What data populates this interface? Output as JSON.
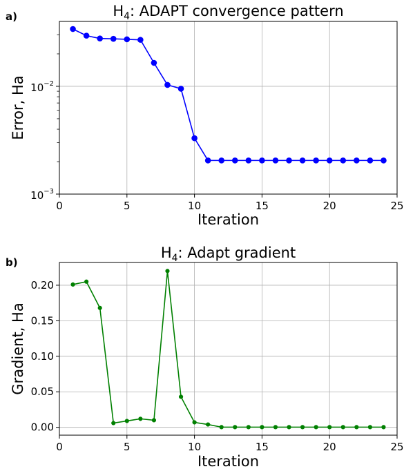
{
  "chart_data": [
    {
      "panel_label": "a)",
      "type": "line",
      "title_main": "H",
      "title_sub": "4",
      "title_rest": ": ADAPT convergence pattern",
      "xlabel": "Iteration",
      "ylabel": "Error, Ha",
      "yscale": "log",
      "xlim": [
        0,
        25
      ],
      "ylim": [
        0.001,
        0.04
      ],
      "xticks": [
        0,
        5,
        10,
        15,
        20,
        25
      ],
      "yticks": [
        {
          "value": 0.001,
          "base": "10",
          "exp": "−3"
        },
        {
          "value": 0.01,
          "base": "10",
          "exp": "−2"
        }
      ],
      "grid": true,
      "color": "#0000ff",
      "x": [
        1,
        2,
        3,
        4,
        5,
        6,
        7,
        8,
        9,
        10,
        11,
        12,
        13,
        14,
        15,
        16,
        17,
        18,
        19,
        20,
        21,
        22,
        23,
        24
      ],
      "y": [
        0.034,
        0.0295,
        0.0278,
        0.0276,
        0.0273,
        0.027,
        0.0165,
        0.0103,
        0.0095,
        0.0033,
        0.00205,
        0.00205,
        0.00205,
        0.00205,
        0.00205,
        0.00205,
        0.00205,
        0.00205,
        0.00205,
        0.00205,
        0.00205,
        0.00205,
        0.00205,
        0.00205
      ]
    },
    {
      "panel_label": "b)",
      "type": "line",
      "title_main": "H",
      "title_sub": "4",
      "title_rest": ": Adapt gradient",
      "xlabel": "Iteration",
      "ylabel": "Gradient, Ha",
      "yscale": "linear",
      "xlim": [
        0,
        25
      ],
      "ylim": [
        -0.011,
        0.232
      ],
      "xticks": [
        0,
        5,
        10,
        15,
        20,
        25
      ],
      "yticks": [
        {
          "value": 0.0,
          "label": "0.00"
        },
        {
          "value": 0.05,
          "label": "0.05"
        },
        {
          "value": 0.1,
          "label": "0.10"
        },
        {
          "value": 0.15,
          "label": "0.15"
        },
        {
          "value": 0.2,
          "label": "0.20"
        }
      ],
      "grid": true,
      "color": "#008000",
      "x": [
        1,
        2,
        3,
        4,
        5,
        6,
        7,
        8,
        9,
        10,
        11,
        12,
        13,
        14,
        15,
        16,
        17,
        18,
        19,
        20,
        21,
        22,
        23,
        24
      ],
      "y": [
        0.201,
        0.205,
        0.168,
        0.006,
        0.009,
        0.012,
        0.01,
        0.22,
        0.043,
        0.007,
        0.004,
        0.0003,
        0.0003,
        0.0003,
        0.0003,
        0.0003,
        0.0003,
        0.0003,
        0.0003,
        0.0003,
        0.0003,
        0.0003,
        0.0003,
        0.0003
      ]
    }
  ]
}
